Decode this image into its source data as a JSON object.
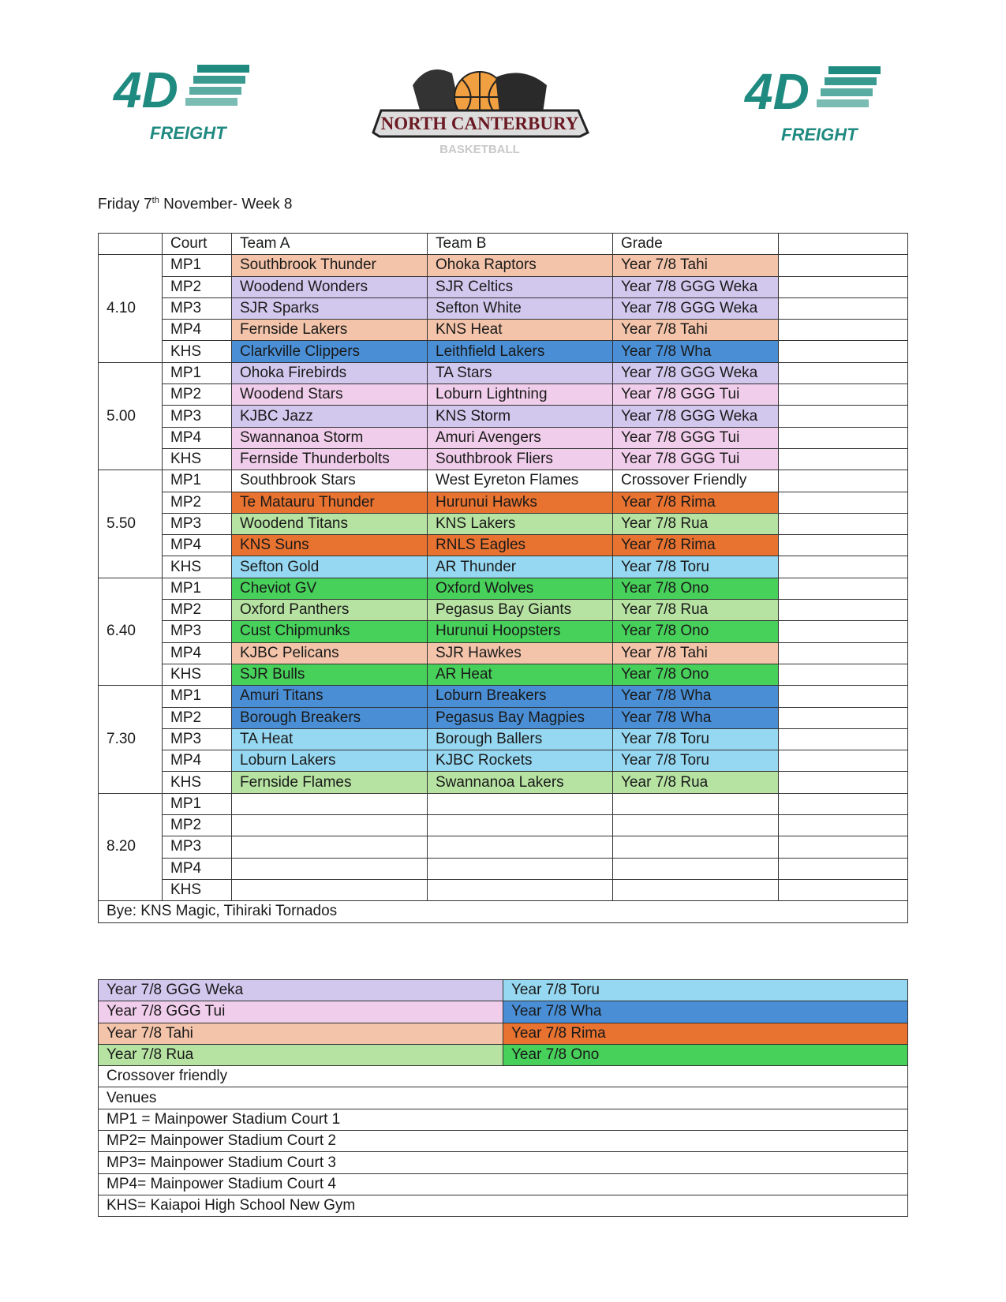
{
  "logos": {
    "sponsor_top": "4D",
    "sponsor_bottom": "FREIGHT",
    "club_name": "NORTH CANTERBURY",
    "club_sub": "BASKETBALL"
  },
  "title": {
    "pre": "Friday 7",
    "sup": "th",
    "post": " November- Week 8"
  },
  "colors": {
    "Year 7/8 GGG Weka": "#d2c8ee",
    "Year 7/8 GGG Tui": "#f0cdea",
    "Year 7/8 Tahi": "#f4c4aa",
    "Year 7/8 Rua": "#b6e3a2",
    "Year 7/8 Toru": "#96d8f2",
    "Year 7/8 Wha": "#4a8fd6",
    "Year 7/8 Rima": "#e8722f",
    "Year 7/8 Ono": "#47d05a"
  },
  "schedule": {
    "headers": [
      "",
      "Court",
      "Team A",
      "Team B",
      "Grade",
      ""
    ],
    "slots": [
      {
        "time": "4.10",
        "games": [
          {
            "court": "MP1",
            "a": "Southbrook Thunder",
            "b": "Ohoka Raptors",
            "grade": "Year 7/8 Tahi"
          },
          {
            "court": "MP2",
            "a": "Woodend Wonders",
            "b": "SJR Celtics",
            "grade": "Year 7/8 GGG Weka"
          },
          {
            "court": "MP3",
            "a": "SJR Sparks",
            "b": "Sefton White",
            "grade": "Year 7/8 GGG Weka"
          },
          {
            "court": "MP4",
            "a": "Fernside Lakers",
            "b": "KNS Heat",
            "grade": "Year 7/8 Tahi"
          },
          {
            "court": "KHS",
            "a": "Clarkville Clippers",
            "b": "Leithfield Lakers",
            "grade": "Year 7/8 Wha"
          }
        ]
      },
      {
        "time": "5.00",
        "games": [
          {
            "court": "MP1",
            "a": "Ohoka Firebirds",
            "b": "TA Stars",
            "grade": "Year 7/8 GGG Weka"
          },
          {
            "court": "MP2",
            "a": "Woodend Stars",
            "b": "Loburn Lightning",
            "grade": "Year 7/8 GGG Tui"
          },
          {
            "court": "MP3",
            "a": "KJBC Jazz",
            "b": "KNS Storm",
            "grade": "Year 7/8 GGG Weka"
          },
          {
            "court": "MP4",
            "a": "Swannanoa Storm",
            "b": "Amuri Avengers",
            "grade": "Year 7/8 GGG Tui"
          },
          {
            "court": "KHS",
            "a": "Fernside Thunderbolts",
            "b": "Southbrook Fliers",
            "grade": "Year 7/8 GGG Tui"
          }
        ]
      },
      {
        "time": "5.50",
        "games": [
          {
            "court": "MP1",
            "a": "Southbrook Stars",
            "b": "West Eyreton Flames",
            "grade": "Crossover Friendly"
          },
          {
            "court": "MP2",
            "a": "Te Matauru Thunder",
            "b": "Hurunui Hawks",
            "grade": "Year 7/8 Rima"
          },
          {
            "court": "MP3",
            "a": "Woodend Titans",
            "b": "KNS Lakers",
            "grade": "Year 7/8 Rua"
          },
          {
            "court": "MP4",
            "a": "KNS Suns",
            "b": "RNLS Eagles",
            "grade": "Year 7/8 Rima"
          },
          {
            "court": "KHS",
            "a": "Sefton Gold",
            "b": "AR Thunder",
            "grade": "Year 7/8 Toru"
          }
        ]
      },
      {
        "time": "6.40",
        "games": [
          {
            "court": "MP1",
            "a": "Cheviot GV",
            "b": "Oxford Wolves",
            "grade": "Year 7/8 Ono"
          },
          {
            "court": "MP2",
            "a": "Oxford Panthers",
            "b": "Pegasus Bay Giants",
            "grade": "Year 7/8 Rua"
          },
          {
            "court": "MP3",
            "a": "Cust Chipmunks",
            "b": "Hurunui Hoopsters",
            "grade": "Year 7/8 Ono"
          },
          {
            "court": "MP4",
            "a": "KJBC Pelicans",
            "b": "SJR Hawkes",
            "grade": "Year 7/8 Tahi"
          },
          {
            "court": "KHS",
            "a": "SJR Bulls",
            "b": "AR Heat",
            "grade": "Year 7/8 Ono"
          }
        ]
      },
      {
        "time": "7.30",
        "games": [
          {
            "court": "MP1",
            "a": "Amuri Titans",
            "b": "Loburn Breakers",
            "grade": "Year 7/8 Wha"
          },
          {
            "court": "MP2",
            "a": "Borough Breakers",
            "b": "Pegasus Bay Magpies",
            "grade": "Year 7/8 Wha"
          },
          {
            "court": "MP3",
            "a": "TA Heat",
            "b": "Borough Ballers",
            "grade": "Year 7/8 Toru"
          },
          {
            "court": "MP4",
            "a": "Loburn Lakers",
            "b": "KJBC Rockets",
            "grade": "Year 7/8 Toru"
          },
          {
            "court": "KHS",
            "a": "Fernside Flames",
            "b": "Swannanoa Lakers",
            "grade": "Year 7/8 Rua"
          }
        ]
      },
      {
        "time": "8.20",
        "games": [
          {
            "court": "MP1",
            "a": "",
            "b": "",
            "grade": ""
          },
          {
            "court": "MP2",
            "a": "",
            "b": "",
            "grade": ""
          },
          {
            "court": "MP3",
            "a": "",
            "b": "",
            "grade": ""
          },
          {
            "court": "MP4",
            "a": "",
            "b": "",
            "grade": ""
          },
          {
            "court": "KHS",
            "a": "",
            "b": "",
            "grade": ""
          }
        ]
      }
    ],
    "bye": "Bye: KNS Magic, Tihiraki Tornados"
  },
  "legend": {
    "grades": [
      [
        "Year 7/8 GGG Weka",
        "Year 7/8 Toru"
      ],
      [
        "Year 7/8 GGG Tui",
        "Year 7/8 Wha"
      ],
      [
        "Year 7/8 Tahi",
        "Year 7/8 Rima"
      ],
      [
        "Year 7/8 Rua",
        "Year 7/8 Ono"
      ]
    ],
    "notes": [
      "Crossover friendly",
      "Venues",
      "MP1 = Mainpower Stadium Court 1",
      "MP2= Mainpower Stadium Court 2",
      "MP3= Mainpower Stadium Court 3",
      "MP4= Mainpower Stadium Court 4",
      "KHS= Kaiapoi High School New Gym"
    ]
  }
}
